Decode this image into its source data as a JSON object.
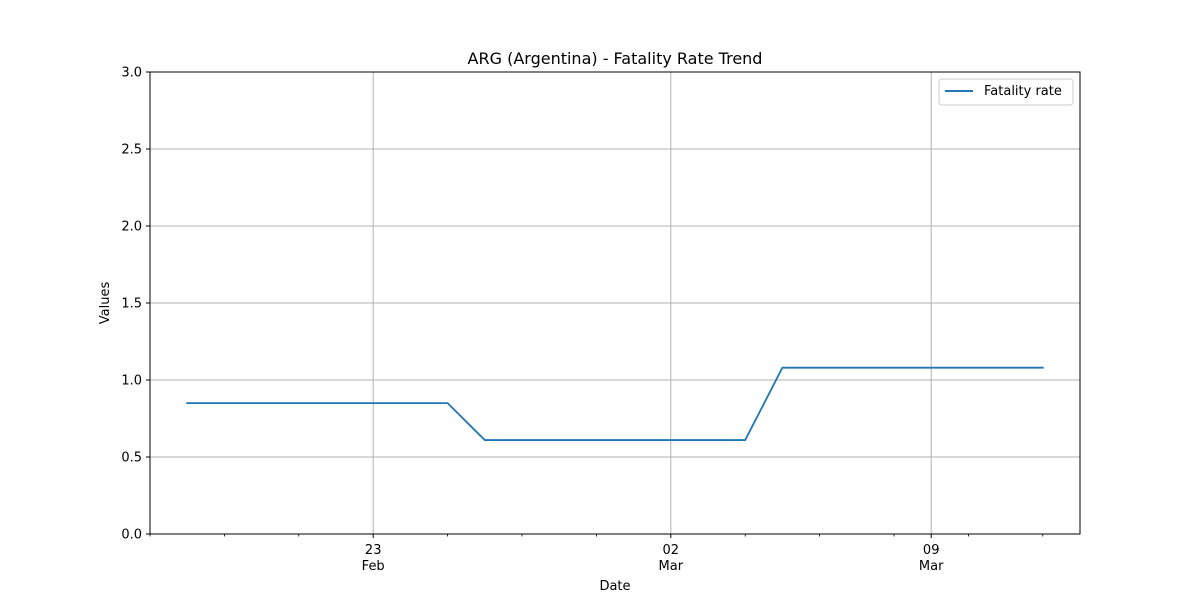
{
  "chart_data": {
    "type": "line",
    "title": "ARG (Argentina) - Fatality Rate Trend",
    "xlabel": "Date",
    "ylabel": "Values",
    "ylim": [
      0,
      3.0
    ],
    "xlim": [
      "2020-02-17",
      "2020-03-13"
    ],
    "grid": true,
    "legend_position": "upper-right",
    "x": [
      "2020-02-18",
      "2020-02-19",
      "2020-02-20",
      "2020-02-21",
      "2020-02-22",
      "2020-02-23",
      "2020-02-24",
      "2020-02-25",
      "2020-02-26",
      "2020-02-27",
      "2020-02-28",
      "2020-02-29",
      "2020-03-01",
      "2020-03-02",
      "2020-03-03",
      "2020-03-04",
      "2020-03-05",
      "2020-03-06",
      "2020-03-07",
      "2020-03-08",
      "2020-03-09",
      "2020-03-10",
      "2020-03-11",
      "2020-03-12"
    ],
    "series": [
      {
        "name": "Fatality rate",
        "color": "#1f77b4",
        "values": [
          0.85,
          0.85,
          0.85,
          0.85,
          0.85,
          0.85,
          0.85,
          0.85,
          0.61,
          0.61,
          0.61,
          0.61,
          0.61,
          0.61,
          0.61,
          0.61,
          1.08,
          1.08,
          1.08,
          1.08,
          1.08,
          1.08,
          1.08,
          1.08
        ]
      }
    ],
    "y_ticks": [
      {
        "value": 0.0,
        "label": "0.0"
      },
      {
        "value": 0.5,
        "label": "0.5"
      },
      {
        "value": 1.0,
        "label": "1.0"
      },
      {
        "value": 1.5,
        "label": "1.5"
      },
      {
        "value": 2.0,
        "label": "2.0"
      },
      {
        "value": 2.5,
        "label": "2.5"
      },
      {
        "value": 3.0,
        "label": "3.0"
      }
    ],
    "x_major_ticks": [
      {
        "date": "2020-02-23",
        "day": "23",
        "month": "Feb"
      },
      {
        "date": "2020-03-02",
        "day": "02",
        "month": "Mar"
      },
      {
        "date": "2020-03-09",
        "day": "09",
        "month": "Mar"
      }
    ]
  }
}
